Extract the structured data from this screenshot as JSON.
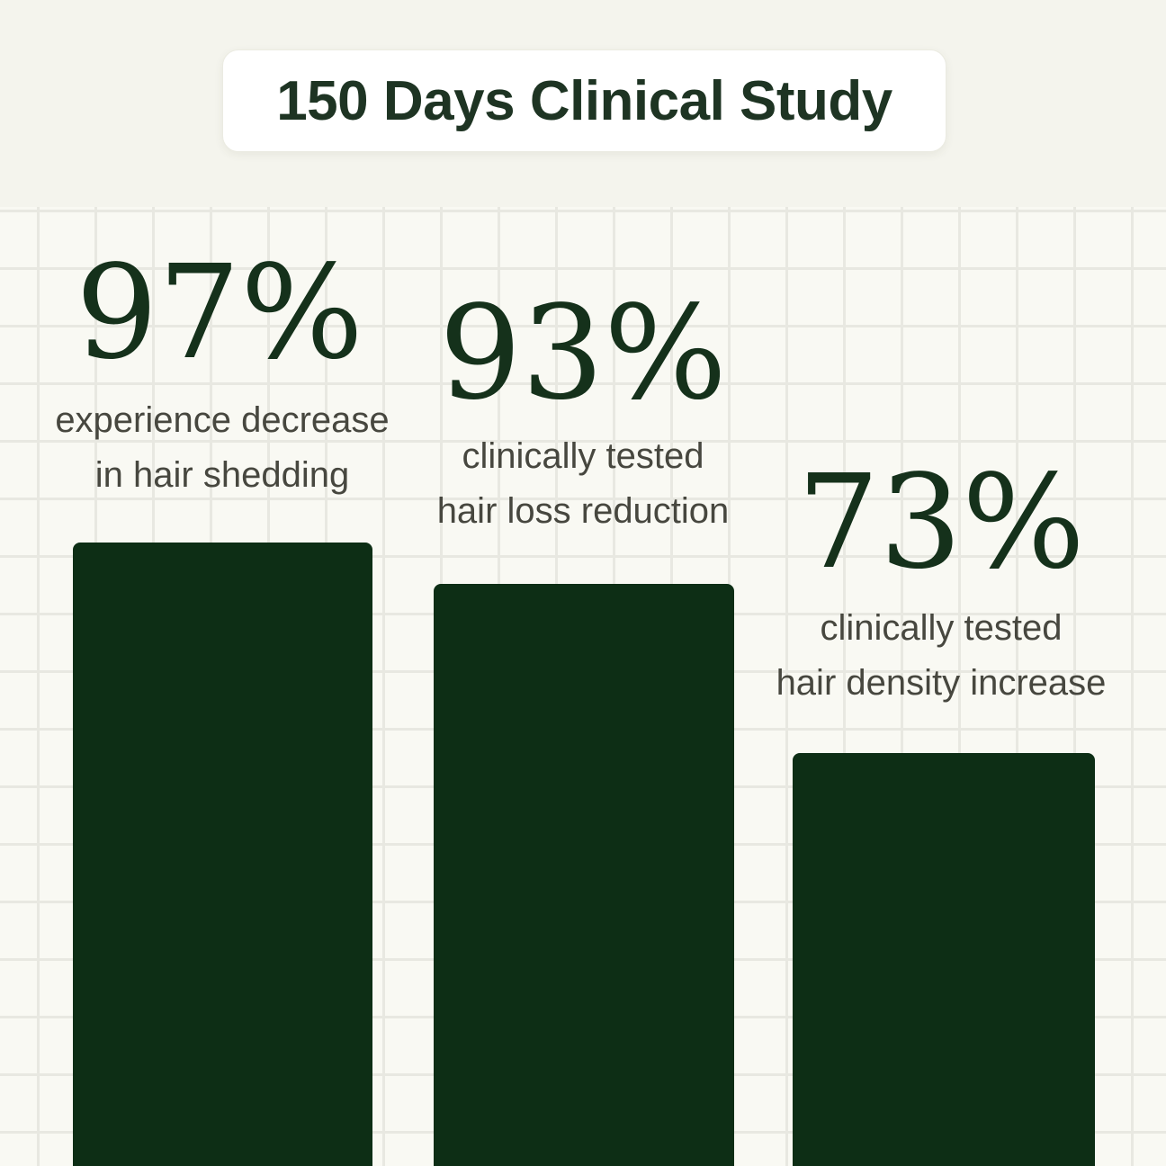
{
  "title": "150 Days Clinical Study",
  "chart_data": {
    "type": "bar",
    "title": "150 Days Clinical Study",
    "categories": [
      "experience decrease in hair shedding",
      "clinically tested hair loss reduction",
      "clinically tested hair density increase"
    ],
    "values": [
      97,
      93,
      73
    ],
    "value_labels": [
      "97%",
      "93%",
      "73%"
    ],
    "unit": "%",
    "ylim": [
      0,
      100
    ],
    "grid": true,
    "legend": false,
    "bar_color": "#0d2e15",
    "value_label_position": "above-bar",
    "orientation": "vertical"
  },
  "columns": [
    {
      "value_label": "97%",
      "label_lines": [
        "experience decrease",
        "in hair shedding"
      ]
    },
    {
      "value_label": "93%",
      "label_lines": [
        "clinically tested",
        "hair loss reduction"
      ]
    },
    {
      "value_label": "73%",
      "label_lines": [
        "clinically tested",
        "hair density increase"
      ]
    }
  ],
  "colors": {
    "header_background": "#f4f4ed",
    "grid_cell_background": "#f9f9f3",
    "grid_line": "#e8e8e1",
    "card_background": "#ffffff",
    "card_border": "#ebebe2",
    "title_text": "#1e3423",
    "stat_number_text": "#15311b",
    "caption_text": "#47473f",
    "bar_fill": "#0d2e15"
  }
}
